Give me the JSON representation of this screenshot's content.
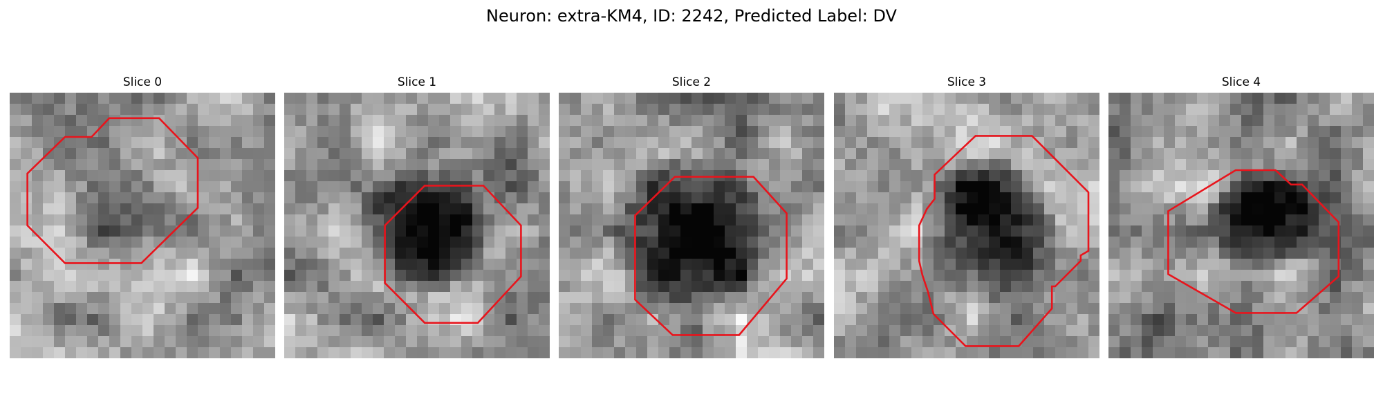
{
  "figure": {
    "title": "Neuron: extra-KM4, ID: 2242, Predicted Label: DV"
  },
  "panels": [
    {
      "title": "Slice 0"
    },
    {
      "title": "Slice 1"
    },
    {
      "title": "Slice 2"
    },
    {
      "title": "Slice 3"
    },
    {
      "title": "Slice 4"
    }
  ],
  "colors": {
    "contour": "#e8141c",
    "background": "#ffffff"
  }
}
